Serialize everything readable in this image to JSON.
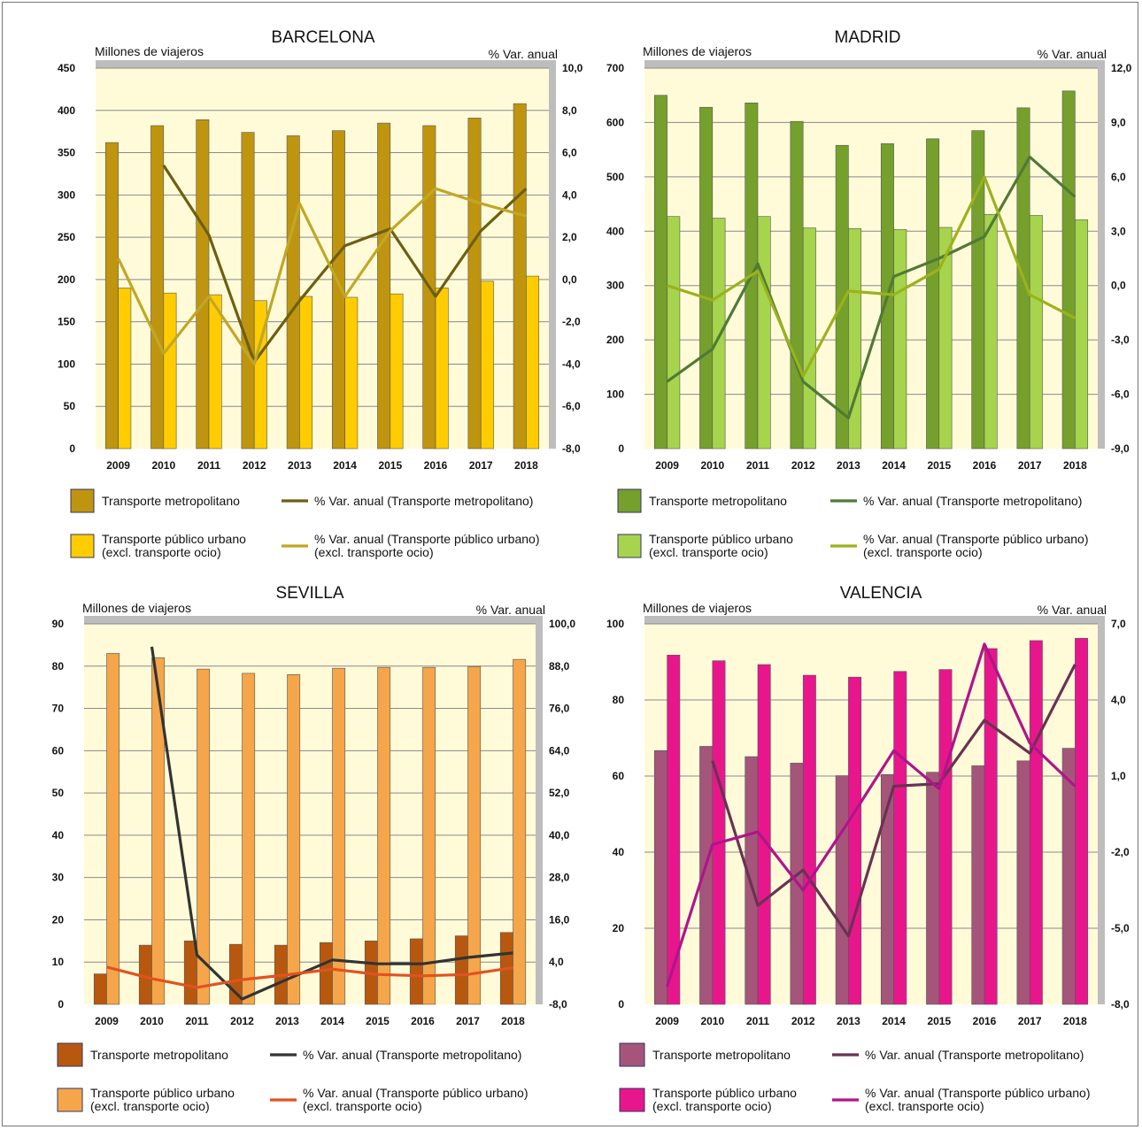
{
  "colors": {
    "plot_bg": "#fffbd9",
    "shadow": "#bdbdbd",
    "gridline": "#8a8a8a",
    "axis_text": "#111111"
  },
  "chart_data": [
    {
      "type": "bar",
      "title": "BARCELONA",
      "ylabel_left": "Millones de viajeros",
      "ylabel_right": "% Var. anual",
      "categories": [
        "2009",
        "2010",
        "2011",
        "2012",
        "2013",
        "2014",
        "2015",
        "2016",
        "2017",
        "2018"
      ],
      "ylim_left": [
        0,
        450
      ],
      "ylim_right": [
        -8,
        10
      ],
      "left_ticks": [
        "0",
        "50",
        "100",
        "150",
        "200",
        "250",
        "300",
        "350",
        "400",
        "450"
      ],
      "right_ticks": [
        "-8,0",
        "-6,0",
        "-4,0",
        "-2,0",
        "0,0",
        "2,0",
        "4,0",
        "6,0",
        "8,0",
        "10,0"
      ],
      "bar_series": [
        {
          "name": "Transporte metropolitano",
          "color": "#bf9510",
          "values": [
            362,
            382,
            389,
            374,
            370,
            376,
            385,
            382,
            391,
            408
          ]
        },
        {
          "name": "Transporte público urbano\n(excl. transporte ocio)",
          "color": "#ffcc00",
          "values": [
            190,
            184,
            182,
            175,
            180,
            179,
            183,
            190,
            198,
            204
          ]
        }
      ],
      "line_series": [
        {
          "name": "% Var. anual (Transporte metropolitano)",
          "color": "#6e5f10",
          "values": [
            null,
            5.4,
            2.1,
            -3.9,
            -1.0,
            1.6,
            2.4,
            -0.8,
            2.3,
            4.3
          ]
        },
        {
          "name": "% Var. anual (Transporte público urbano)\n(excl. transporte ocio)",
          "color": "#c2a726",
          "values": [
            1.0,
            -3.5,
            -0.8,
            -4.0,
            3.6,
            -0.8,
            2.3,
            4.3,
            3.6,
            3.0
          ]
        }
      ]
    },
    {
      "type": "bar",
      "title": "MADRID",
      "ylabel_left": "Millones de viajeros",
      "ylabel_right": "% Var. anual",
      "categories": [
        "2009",
        "2010",
        "2011",
        "2012",
        "2013",
        "2014",
        "2015",
        "2016",
        "2017",
        "2018"
      ],
      "ylim_left": [
        0,
        700
      ],
      "ylim_right": [
        -9,
        12
      ],
      "left_ticks": [
        "0",
        "100",
        "200",
        "300",
        "400",
        "500",
        "600",
        "700"
      ],
      "right_ticks": [
        "-9,0",
        "-6,0",
        "-3,0",
        "0,0",
        "3,0",
        "6,0",
        "9,0",
        "12,0"
      ],
      "bar_series": [
        {
          "name": "Transporte metropolitano",
          "color": "#76a02c",
          "values": [
            650,
            628,
            636,
            602,
            558,
            561,
            570,
            585,
            627,
            658
          ]
        },
        {
          "name": "Transporte público urbano\n(excl. transporte ocio)",
          "color": "#a6d44c",
          "values": [
            427,
            424,
            427,
            406,
            405,
            403,
            407,
            431,
            429,
            421
          ]
        }
      ],
      "line_series": [
        {
          "name": "% Var. anual (Transporte metropolitano)",
          "color": "#4f7a36",
          "values": [
            -5.3,
            -3.5,
            1.2,
            -5.3,
            -7.3,
            0.5,
            1.5,
            2.7,
            7.1,
            4.9
          ]
        },
        {
          "name": "% Var. anual (Transporte público urbano)\n(excl. transporte ocio)",
          "color": "#9bb21c",
          "values": [
            0.0,
            -0.8,
            0.8,
            -5.0,
            -0.3,
            -0.5,
            0.9,
            6.0,
            -0.5,
            -1.8
          ]
        }
      ]
    },
    {
      "type": "bar",
      "title": "SEVILLA",
      "ylabel_left": "Millones de viajeros",
      "ylabel_right": "% Var. anual",
      "categories": [
        "2009",
        "2010",
        "2011",
        "2012",
        "2013",
        "2014",
        "2015",
        "2016",
        "2017",
        "2018"
      ],
      "ylim_left": [
        0,
        90
      ],
      "ylim_right": [
        -8,
        100
      ],
      "left_ticks": [
        "0",
        "10",
        "20",
        "30",
        "40",
        "50",
        "60",
        "70",
        "80",
        "90"
      ],
      "right_ticks": [
        "-8,0",
        "4,0",
        "16,0",
        "28,0",
        "40,0",
        "52,0",
        "64,0",
        "76,0",
        "88,0",
        "100,0"
      ],
      "bar_series": [
        {
          "name": "Transporte metropolitano",
          "color": "#b8580f",
          "values": [
            7.2,
            14,
            15,
            14.2,
            14,
            14.6,
            15,
            15.5,
            16.2,
            17
          ]
        },
        {
          "name": "Transporte público urbano\n(excl. transporte ocio)",
          "color": "#f5a64a",
          "values": [
            83,
            82,
            79.3,
            78.3,
            78,
            79.5,
            79.7,
            79.7,
            79.9,
            81.6
          ]
        }
      ],
      "line_series": [
        {
          "name": "% Var. anual (Transporte metropolitano)",
          "color": "#333333",
          "values": [
            null,
            93.5,
            6.0,
            -6.5,
            -0.9,
            4.6,
            3.5,
            3.5,
            5.3,
            6.6
          ]
        },
        {
          "name": "% Var. anual (Transporte público urbano)\n(excl. transporte ocio)",
          "color": "#e2521f",
          "values": [
            2.6,
            -0.7,
            -3.2,
            -1.0,
            0.4,
            2.0,
            0.5,
            0.1,
            0.5,
            2.4
          ]
        }
      ]
    },
    {
      "type": "bar",
      "title": "VALENCIA",
      "ylabel_left": "Millones de viajeros",
      "ylabel_right": "% Var. anual",
      "categories": [
        "2009",
        "2010",
        "2011",
        "2012",
        "2013",
        "2014",
        "2015",
        "2016",
        "2017",
        "2018"
      ],
      "ylim_left": [
        0,
        100
      ],
      "ylim_right": [
        -8,
        7
      ],
      "left_ticks": [
        "0",
        "20",
        "40",
        "60",
        "80",
        "100"
      ],
      "right_ticks": [
        "-8,0",
        "-5,0",
        "-2,0",
        "1,0",
        "4,0",
        "7,0"
      ],
      "bar_series": [
        {
          "name": "Transporte metropolitano",
          "color": "#a6557a",
          "values": [
            66.7,
            67.8,
            65.1,
            63.4,
            60.1,
            60.4,
            61,
            62.7,
            64,
            67.3
          ]
        },
        {
          "name": "Transporte público urbano\n(excl. transporte ocio)",
          "color": "#e8168c",
          "values": [
            91.8,
            90.3,
            89.3,
            86.5,
            86,
            87.5,
            88,
            93.5,
            95.6,
            96.2
          ]
        }
      ],
      "line_series": [
        {
          "name": "% Var. anual (Transporte metropolitano)",
          "color": "#6a3252",
          "values": [
            null,
            1.6,
            -4.1,
            -2.7,
            -5.3,
            0.6,
            0.7,
            3.2,
            1.9,
            5.4
          ]
        },
        {
          "name": "% Var. anual (Transporte público urbano)\n(excl. transporte ocio)",
          "color": "#b0148a",
          "values": [
            -7.3,
            -1.7,
            -1.2,
            -3.5,
            -0.8,
            2.0,
            0.5,
            6.2,
            2.3,
            0.6
          ]
        }
      ]
    }
  ]
}
